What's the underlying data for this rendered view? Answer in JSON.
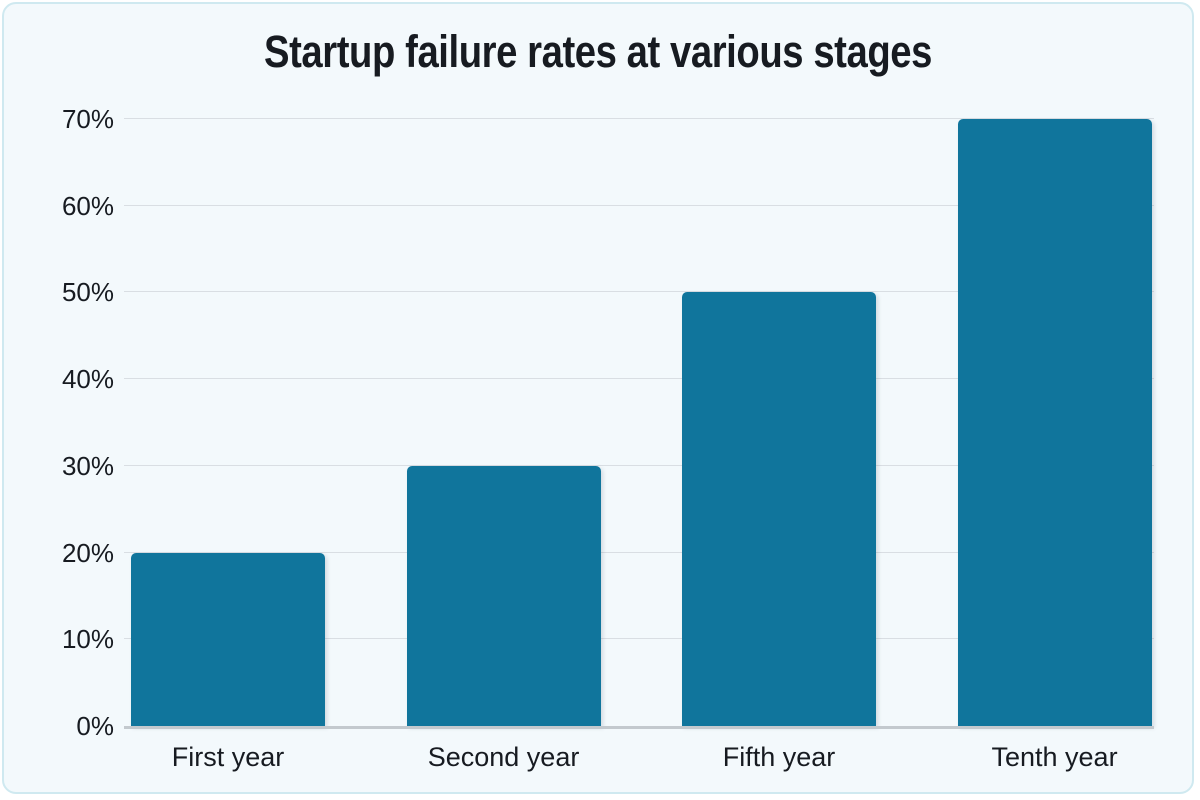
{
  "colors": {
    "bar": "#10759c",
    "background": "#f3f9fc",
    "card_border": "#cfe9f0",
    "gridline": "#d9dee3",
    "axis_line": "#c3c9ce",
    "text": "#171b21"
  },
  "chart_data": {
    "type": "bar",
    "title": "Startup failure rates at various stages",
    "categories": [
      "First year",
      "Second year",
      "Fifth year",
      "Tenth year"
    ],
    "values": [
      20,
      30,
      50,
      70
    ],
    "xlabel": "",
    "ylabel": "",
    "ylim": [
      0,
      70
    ],
    "yticks": [
      {
        "value": 0,
        "label": "0%"
      },
      {
        "value": 10,
        "label": "10%"
      },
      {
        "value": 20,
        "label": "20%"
      },
      {
        "value": 30,
        "label": "30%"
      },
      {
        "value": 40,
        "label": "40%"
      },
      {
        "value": 50,
        "label": "50%"
      },
      {
        "value": 60,
        "label": "60%"
      },
      {
        "value": 70,
        "label": "70%"
      }
    ],
    "grid": true,
    "legend": false
  }
}
